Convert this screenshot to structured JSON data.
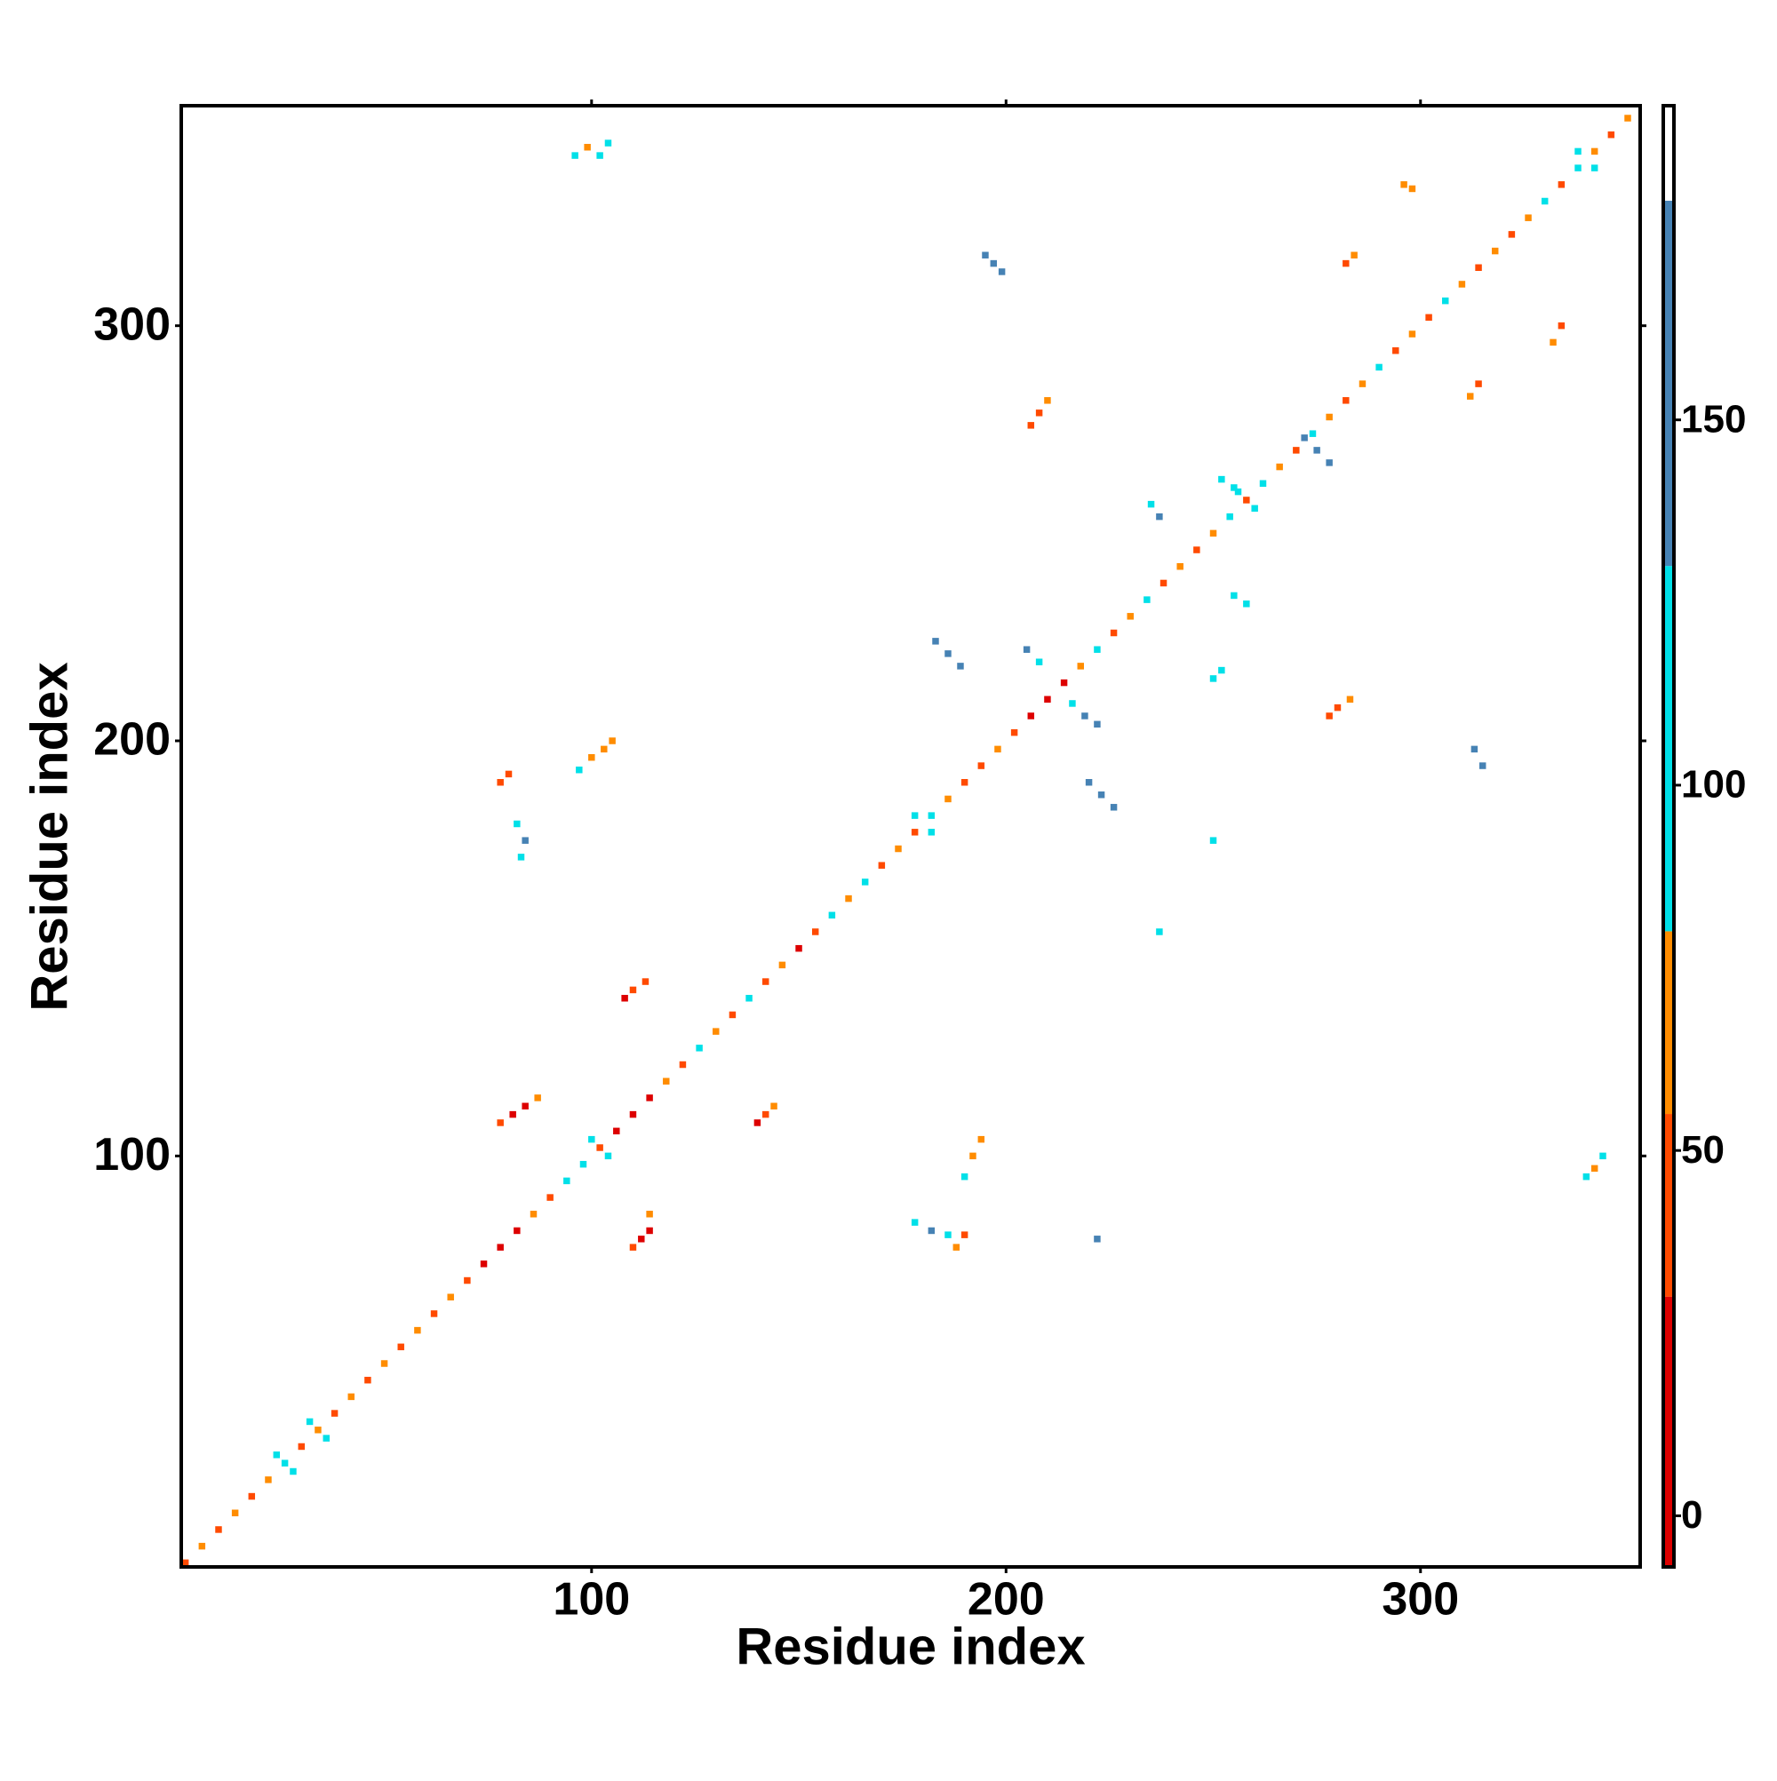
{
  "chart_data": {
    "type": "heatmap",
    "x_label": "Residue index",
    "y_label": "Residue index",
    "xlim": [
      1,
      353
    ],
    "ylim": [
      1,
      353
    ],
    "xticks": [
      100,
      200,
      300
    ],
    "yticks": [
      100,
      200,
      300
    ],
    "x": [
      2,
      6,
      10,
      14,
      18,
      22,
      26,
      30,
      34,
      38,
      42,
      46,
      50,
      54,
      58,
      62,
      66,
      70,
      74,
      78,
      82,
      86,
      90,
      94,
      98,
      102,
      106,
      110,
      114,
      118,
      122,
      126,
      130,
      134,
      138,
      142,
      146,
      150,
      154,
      158,
      162,
      166,
      170,
      174,
      178,
      182,
      186,
      190,
      194,
      198,
      202,
      206,
      210,
      214,
      218,
      222,
      226,
      230,
      234,
      238,
      242,
      246,
      250,
      254,
      258,
      262,
      266,
      270,
      274,
      278,
      282,
      286,
      290,
      294,
      298,
      302,
      306,
      310,
      314,
      318,
      322,
      326,
      330,
      334,
      338,
      342,
      346,
      350,
      96,
      99,
      102,
      104,
      195,
      197,
      199,
      206,
      208,
      210,
      205,
      208,
      216,
      219,
      222,
      183,
      186,
      189,
      220,
      223,
      226,
      108,
      110,
      113,
      78,
      81,
      84,
      87,
      140,
      142,
      144,
      110,
      112,
      114,
      114,
      188,
      190,
      190,
      192,
      194,
      78,
      80,
      82,
      84,
      83,
      97,
      100,
      103,
      105,
      278,
      280,
      283,
      313,
      315,
      282,
      284,
      312,
      314,
      332,
      334,
      340,
      342,
      344,
      235,
      237,
      252,
      255,
      250,
      252,
      255,
      258,
      237,
      250,
      272,
      275,
      278,
      296,
      298,
      178,
      182,
      186,
      222,
      24,
      28,
      32,
      36,
      100,
      104,
      178,
      182,
      256,
      260,
      338,
      342
    ],
    "y": [
      2,
      6,
      10,
      14,
      18,
      22,
      26,
      30,
      34,
      38,
      42,
      46,
      50,
      54,
      58,
      62,
      66,
      70,
      74,
      78,
      82,
      86,
      90,
      94,
      98,
      102,
      106,
      110,
      114,
      118,
      122,
      126,
      130,
      134,
      138,
      142,
      146,
      150,
      154,
      158,
      162,
      166,
      170,
      174,
      178,
      182,
      186,
      190,
      194,
      198,
      202,
      206,
      210,
      214,
      218,
      222,
      226,
      230,
      234,
      238,
      242,
      246,
      250,
      254,
      258,
      262,
      266,
      270,
      274,
      278,
      282,
      286,
      290,
      294,
      298,
      302,
      306,
      310,
      314,
      318,
      322,
      326,
      330,
      334,
      338,
      342,
      346,
      350,
      341,
      343,
      341,
      344,
      317,
      315,
      313,
      276,
      279,
      282,
      222,
      219,
      209,
      206,
      204,
      224,
      221,
      218,
      190,
      187,
      184,
      138,
      140,
      142,
      108,
      110,
      112,
      114,
      108,
      110,
      112,
      78,
      80,
      82,
      86,
      78,
      81,
      95,
      100,
      104,
      190,
      192,
      180,
      176,
      172,
      193,
      196,
      198,
      200,
      206,
      208,
      210,
      198,
      194,
      315,
      317,
      283,
      286,
      296,
      300,
      95,
      97,
      100,
      257,
      254,
      263,
      261,
      215,
      217,
      235,
      233,
      154,
      176,
      273,
      270,
      267,
      334,
      333,
      84,
      82,
      81,
      80,
      28,
      24,
      36,
      32,
      104,
      100,
      182,
      178,
      260,
      256,
      342,
      338
    ],
    "values": [
      45,
      65,
      45,
      65,
      45,
      65,
      100,
      45,
      65,
      45,
      65,
      45,
      65,
      45,
      65,
      45,
      65,
      45,
      10,
      10,
      10,
      65,
      45,
      100,
      100,
      45,
      10,
      10,
      10,
      65,
      45,
      100,
      65,
      45,
      100,
      45,
      65,
      10,
      45,
      100,
      65,
      100,
      45,
      65,
      45,
      100,
      65,
      45,
      45,
      65,
      45,
      10,
      10,
      10,
      65,
      100,
      45,
      65,
      100,
      45,
      65,
      45,
      65,
      100,
      45,
      100,
      65,
      45,
      100,
      65,
      45,
      65,
      100,
      45,
      65,
      45,
      100,
      65,
      45,
      65,
      45,
      65,
      100,
      45,
      100,
      65,
      45,
      65,
      100,
      65,
      100,
      100,
      150,
      150,
      150,
      45,
      45,
      65,
      150,
      100,
      100,
      150,
      150,
      150,
      150,
      150,
      150,
      150,
      150,
      10,
      45,
      45,
      45,
      10,
      10,
      65,
      10,
      45,
      65,
      45,
      10,
      10,
      65,
      65,
      45,
      100,
      65,
      65,
      45,
      45,
      100,
      150,
      100,
      100,
      65,
      65,
      65,
      45,
      45,
      65,
      150,
      150,
      45,
      65,
      65,
      45,
      65,
      45,
      100,
      65,
      100,
      100,
      150,
      100,
      100,
      100,
      100,
      100,
      100,
      100,
      100,
      150,
      150,
      150,
      65,
      65,
      100,
      150,
      100,
      150,
      100,
      100,
      100,
      100,
      100,
      100,
      100,
      100,
      100,
      100,
      100,
      100
    ],
    "colorscale": {
      "breaks": [
        -7,
        30,
        55,
        80,
        130,
        180,
        193
      ],
      "colors": [
        "#dd0000",
        "#ff4a00",
        "#ff8c00",
        "#00e0e8",
        "#4682b4",
        "#ffffff"
      ]
    },
    "zlim": [
      -7,
      193
    ],
    "zticks": [
      0,
      50,
      100,
      150
    ]
  }
}
